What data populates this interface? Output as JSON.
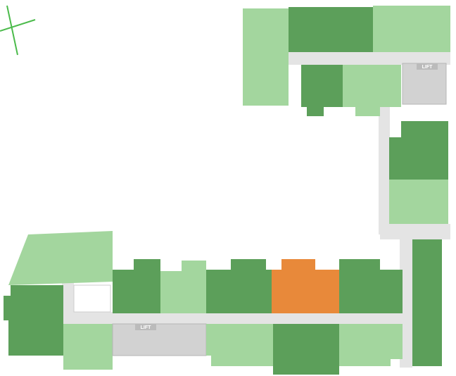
{
  "lifts": [
    {
      "label": "LIFT"
    },
    {
      "label": "LIFT"
    }
  ]
}
